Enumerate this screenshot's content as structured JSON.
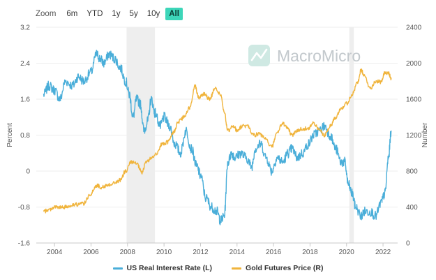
{
  "toolbar": {
    "zoom_label": "Zoom",
    "buttons": [
      "6m",
      "YTD",
      "1y",
      "5y",
      "10y",
      "All"
    ],
    "active": "All"
  },
  "watermark": {
    "text": "MacroMicro",
    "icon": "macromicro-logo-icon"
  },
  "colors": {
    "real_rate": "#4aaed9",
    "gold": "#f0b43c",
    "recession": "#eeeeee",
    "accent": "#3dd6b9"
  },
  "chart_data": {
    "type": "line",
    "x_ticks": [
      "2004",
      "2006",
      "2008",
      "2010",
      "2012",
      "2014",
      "2016",
      "2018",
      "2020",
      "2022"
    ],
    "xlim": [
      2003.0,
      2022.8
    ],
    "left_axis": {
      "title": "Percent",
      "ylim": [
        -1.6,
        3.2
      ],
      "ticks": [
        "3.2",
        "2.4",
        "1.6",
        "0.8",
        "0",
        "-0.8",
        "-1.6"
      ]
    },
    "right_axis": {
      "title": "Number",
      "ylim": [
        0,
        2400
      ],
      "ticks": [
        "2400",
        "2000",
        "1600",
        "1200",
        "800",
        "400",
        "0"
      ]
    },
    "recessions": [
      [
        2007.95,
        2009.5
      ],
      [
        2020.15,
        2020.4
      ]
    ],
    "grid": true,
    "legend_position": "bottom",
    "series": [
      {
        "name": "US Real Interest Rate (L)",
        "axis": "left",
        "x": [
          2003.4,
          2003.7,
          2004.0,
          2004.3,
          2004.6,
          2005.0,
          2005.3,
          2005.6,
          2006.0,
          2006.3,
          2006.5,
          2006.7,
          2007.0,
          2007.3,
          2007.6,
          2007.9,
          2008.1,
          2008.3,
          2008.5,
          2008.7,
          2008.9,
          2009.1,
          2009.3,
          2009.5,
          2009.8,
          2010.0,
          2010.3,
          2010.6,
          2010.9,
          2011.2,
          2011.5,
          2011.8,
          2012.0,
          2012.3,
          2012.6,
          2012.9,
          2013.1,
          2013.3,
          2013.5,
          2013.7,
          2013.9,
          2014.2,
          2014.5,
          2014.8,
          2015.0,
          2015.3,
          2015.6,
          2015.9,
          2016.2,
          2016.5,
          2016.8,
          2017.0,
          2017.3,
          2017.6,
          2017.9,
          2018.2,
          2018.5,
          2018.8,
          2019.1,
          2019.4,
          2019.7,
          2019.9,
          2020.1,
          2020.3,
          2020.5,
          2020.8,
          2021.0,
          2021.3,
          2021.6,
          2021.9,
          2022.1,
          2022.3,
          2022.45
        ],
        "y": [
          1.7,
          1.9,
          1.8,
          1.6,
          2.0,
          1.9,
          2.1,
          2.0,
          2.2,
          2.6,
          2.5,
          2.4,
          2.6,
          2.5,
          2.3,
          2.0,
          1.7,
          1.2,
          1.6,
          1.5,
          0.9,
          1.1,
          1.6,
          1.3,
          1.0,
          1.2,
          1.0,
          0.6,
          0.4,
          0.9,
          0.5,
          0.1,
          -0.1,
          -0.6,
          -0.8,
          -0.9,
          -1.1,
          -1.0,
          0.2,
          0.4,
          0.3,
          0.4,
          0.3,
          0.1,
          0.5,
          0.6,
          0.3,
          0.0,
          0.3,
          0.2,
          0.4,
          0.5,
          0.3,
          0.4,
          0.6,
          0.8,
          0.9,
          1.0,
          0.8,
          0.5,
          0.2,
          0.2,
          -0.3,
          -0.5,
          -0.8,
          -1.0,
          -0.9,
          -0.9,
          -1.0,
          -0.7,
          -0.5,
          0.3,
          0.9
        ]
      },
      {
        "name": "Gold Futures Price (R)",
        "axis": "right",
        "x": [
          2003.4,
          2003.7,
          2004.0,
          2004.3,
          2004.6,
          2005.0,
          2005.3,
          2005.6,
          2006.0,
          2006.3,
          2006.6,
          2007.0,
          2007.3,
          2007.6,
          2007.9,
          2008.2,
          2008.5,
          2008.8,
          2009.0,
          2009.3,
          2009.6,
          2009.9,
          2010.2,
          2010.5,
          2010.8,
          2011.1,
          2011.4,
          2011.7,
          2011.9,
          2012.2,
          2012.5,
          2012.8,
          2013.1,
          2013.3,
          2013.5,
          2013.8,
          2014.0,
          2014.3,
          2014.6,
          2014.9,
          2015.2,
          2015.5,
          2015.9,
          2016.2,
          2016.5,
          2016.8,
          2017.0,
          2017.3,
          2017.6,
          2017.9,
          2018.2,
          2018.5,
          2018.8,
          2019.1,
          2019.4,
          2019.7,
          2020.0,
          2020.3,
          2020.6,
          2020.8,
          2021.0,
          2021.3,
          2021.6,
          2021.9,
          2022.1,
          2022.3,
          2022.45
        ],
        "y": [
          350,
          370,
          400,
          395,
          400,
          425,
          430,
          440,
          550,
          640,
          620,
          650,
          670,
          700,
          800,
          900,
          880,
          780,
          900,
          940,
          1000,
          1100,
          1120,
          1230,
          1350,
          1400,
          1500,
          1750,
          1620,
          1660,
          1600,
          1720,
          1650,
          1450,
          1250,
          1300,
          1250,
          1300,
          1300,
          1200,
          1210,
          1170,
          1070,
          1230,
          1330,
          1270,
          1200,
          1250,
          1270,
          1280,
          1330,
          1260,
          1200,
          1300,
          1400,
          1500,
          1550,
          1650,
          1780,
          1920,
          1850,
          1720,
          1800,
          1790,
          1890,
          1900,
          1820
        ]
      }
    ]
  }
}
